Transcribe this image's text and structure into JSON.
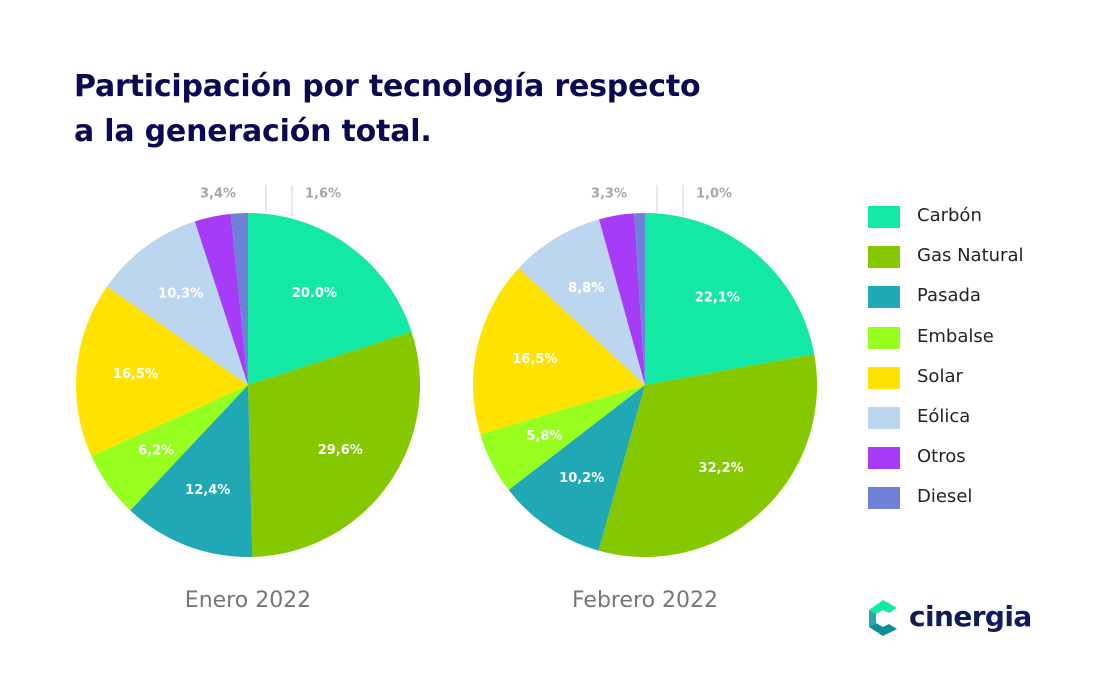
{
  "title": {
    "line1": "Participación por tecnología respecto",
    "line2": "a la generación total."
  },
  "legend": [
    {
      "name": "Carbón",
      "color": "#14e8a5"
    },
    {
      "name": "Gas Natural",
      "color": "#86c800"
    },
    {
      "name": "Pasada",
      "color": "#20a8b4"
    },
    {
      "name": "Embalse",
      "color": "#97ff1f"
    },
    {
      "name": "Solar",
      "color": "#ffe200"
    },
    {
      "name": "Eólica",
      "color": "#bcd6ef"
    },
    {
      "name": "Otros",
      "color": "#a63cf7"
    },
    {
      "name": "Diesel",
      "color": "#6e80d7"
    }
  ],
  "chart_data": [
    {
      "type": "pie",
      "title": "",
      "xlabel": "Enero 2022",
      "categories": [
        "Carbón",
        "Gas Natural",
        "Pasada",
        "Embalse",
        "Solar",
        "Eólica",
        "Otros",
        "Diesel"
      ],
      "values": [
        20.0,
        29.6,
        12.4,
        6.2,
        16.5,
        10.3,
        3.4,
        1.6
      ],
      "labels": [
        "20.0%",
        "29,6%",
        "12,4%",
        "6,2%",
        "16,5%",
        "10,3%",
        "3,4%",
        "1,6%"
      ],
      "legend": "right"
    },
    {
      "type": "pie",
      "title": "",
      "xlabel": "Febrero 2022",
      "categories": [
        "Carbón",
        "Gas Natural",
        "Pasada",
        "Embalse",
        "Solar",
        "Eólica",
        "Otros",
        "Diesel"
      ],
      "values": [
        22.1,
        32.2,
        10.2,
        5.8,
        16.5,
        8.8,
        3.3,
        1.0
      ],
      "labels": [
        "22,1%",
        "32,2%",
        "10,2%",
        "5,8%",
        "16,5%",
        "8,8%",
        "3,3%",
        "1,0%"
      ],
      "legend": "right"
    }
  ],
  "logo": {
    "text": "cinergia",
    "colors": [
      "#14e8a5",
      "#20a8b4",
      "#0c8f98"
    ]
  }
}
